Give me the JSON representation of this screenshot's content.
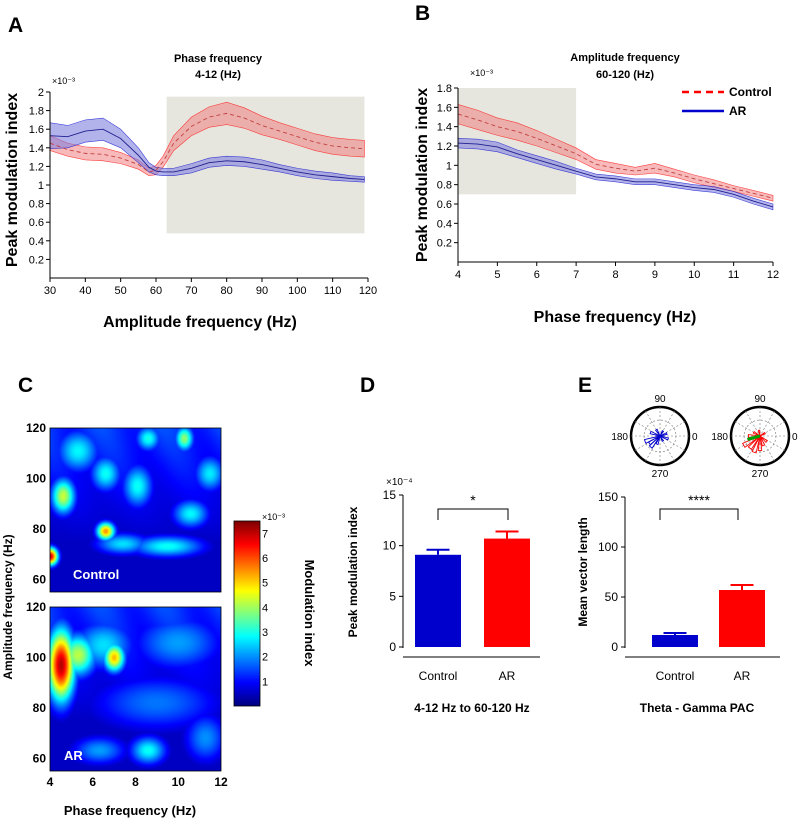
{
  "colors": {
    "control": "#ff0000",
    "ar": "#0000cc",
    "control_band": "#f08080",
    "ar_band": "#8080e0",
    "highlight": "#e6e6df"
  },
  "chart_data": [
    {
      "id": "A",
      "panel_label": "A",
      "type": "line",
      "title": "Phase frequency",
      "subtitle": "4-12 (Hz)",
      "xlabel": "Amplitude frequency (Hz)",
      "ylabel": "Peak modulation index",
      "y_exponent": "×10⁻³",
      "xlim": [
        30,
        120
      ],
      "ylim": [
        0,
        2
      ],
      "xticks": [
        30,
        40,
        50,
        60,
        70,
        80,
        90,
        100,
        110,
        120
      ],
      "yticks": [
        0.2,
        0.4,
        0.6,
        0.8,
        1,
        1.2,
        1.4,
        1.6,
        1.8,
        2
      ],
      "highlight_range": {
        "x": [
          63,
          119
        ],
        "y": [
          0.48,
          1.95
        ]
      },
      "series": [
        {
          "name": "Control",
          "x": [
            30,
            35,
            40,
            45,
            50,
            55,
            58,
            60,
            62,
            65,
            70,
            75,
            80,
            85,
            90,
            95,
            100,
            105,
            110,
            115,
            119
          ],
          "y": [
            1.45,
            1.38,
            1.34,
            1.33,
            1.29,
            1.22,
            1.14,
            1.16,
            1.25,
            1.45,
            1.63,
            1.73,
            1.77,
            1.72,
            1.64,
            1.58,
            1.52,
            1.46,
            1.42,
            1.4,
            1.39
          ],
          "err": [
            0.08,
            0.07,
            0.07,
            0.07,
            0.06,
            0.05,
            0.04,
            0.05,
            0.06,
            0.08,
            0.1,
            0.11,
            0.12,
            0.11,
            0.1,
            0.09,
            0.09,
            0.09,
            0.09,
            0.09,
            0.09
          ]
        },
        {
          "name": "AR",
          "x": [
            30,
            35,
            40,
            45,
            50,
            55,
            58,
            60,
            62,
            65,
            70,
            75,
            80,
            85,
            90,
            95,
            100,
            105,
            110,
            115,
            119
          ],
          "y": [
            1.53,
            1.52,
            1.58,
            1.6,
            1.5,
            1.32,
            1.19,
            1.15,
            1.14,
            1.14,
            1.18,
            1.24,
            1.26,
            1.25,
            1.22,
            1.18,
            1.14,
            1.11,
            1.09,
            1.07,
            1.06
          ],
          "err": [
            0.14,
            0.12,
            0.12,
            0.12,
            0.1,
            0.08,
            0.05,
            0.04,
            0.04,
            0.04,
            0.05,
            0.05,
            0.05,
            0.05,
            0.05,
            0.04,
            0.04,
            0.04,
            0.04,
            0.03,
            0.03
          ]
        }
      ]
    },
    {
      "id": "B",
      "panel_label": "B",
      "type": "line",
      "title": "Amplitude frequency",
      "subtitle": "60-120 (Hz)",
      "xlabel": "Phase frequency (Hz)",
      "ylabel": "Peak modulation index",
      "y_exponent": "×10⁻³",
      "xlim": [
        4,
        12
      ],
      "ylim": [
        0,
        1.8
      ],
      "xticks": [
        4,
        5,
        6,
        7,
        8,
        9,
        10,
        11,
        12
      ],
      "yticks": [
        0.2,
        0.4,
        0.6,
        0.8,
        1,
        1.2,
        1.4,
        1.6,
        1.8
      ],
      "highlight_range": {
        "x": [
          4,
          7
        ],
        "y": [
          0.7,
          1.8
        ]
      },
      "legend": [
        {
          "name": "Control",
          "style": "dashed"
        },
        {
          "name": "AR",
          "style": "solid"
        }
      ],
      "series": [
        {
          "name": "Control",
          "x": [
            4,
            4.5,
            5,
            5.5,
            6,
            6.5,
            7,
            7.5,
            8,
            8.5,
            9,
            9.5,
            10,
            10.5,
            11,
            11.5,
            12
          ],
          "y": [
            1.53,
            1.47,
            1.4,
            1.35,
            1.28,
            1.2,
            1.12,
            1.01,
            0.97,
            0.94,
            0.97,
            0.92,
            0.86,
            0.81,
            0.76,
            0.71,
            0.66
          ],
          "err": [
            0.1,
            0.1,
            0.09,
            0.09,
            0.08,
            0.07,
            0.06,
            0.05,
            0.05,
            0.04,
            0.05,
            0.04,
            0.04,
            0.04,
            0.03,
            0.03,
            0.03
          ]
        },
        {
          "name": "AR",
          "x": [
            4,
            4.5,
            5,
            5.5,
            6,
            6.5,
            7,
            7.5,
            8,
            8.5,
            9,
            9.5,
            10,
            10.5,
            11,
            11.5,
            12
          ],
          "y": [
            1.23,
            1.22,
            1.19,
            1.12,
            1.06,
            1.0,
            0.94,
            0.88,
            0.86,
            0.83,
            0.83,
            0.8,
            0.77,
            0.75,
            0.7,
            0.63,
            0.57
          ],
          "err": [
            0.05,
            0.05,
            0.05,
            0.04,
            0.04,
            0.04,
            0.03,
            0.03,
            0.03,
            0.03,
            0.03,
            0.03,
            0.03,
            0.03,
            0.03,
            0.03,
            0.03
          ]
        }
      ]
    },
    {
      "id": "C",
      "panel_label": "C",
      "type": "heatmap",
      "xlabel": "Phase frequency (Hz)",
      "ylabel": "Amplitude frequency (Hz)",
      "xlim": [
        4,
        12
      ],
      "xticks": [
        4,
        6,
        8,
        10,
        12
      ],
      "colorbar": {
        "label": "Modulation index",
        "exponent": "×10⁻³",
        "ticks": [
          1,
          2,
          3,
          4,
          5,
          6,
          7
        ],
        "range": [
          0,
          7.5
        ]
      },
      "maps": [
        {
          "name": "Control",
          "ylim": [
            55,
            120
          ],
          "yticks": [
            60,
            80,
            100,
            120
          ],
          "hotspots": [
            {
              "phase": 4.0,
              "amp": 69,
              "value": 6.8,
              "sx": 0.25,
              "sy": 2.5
            },
            {
              "phase": 4.6,
              "amp": 93,
              "value": 4.3,
              "sx": 0.4,
              "sy": 5
            },
            {
              "phase": 6.6,
              "amp": 79,
              "value": 5.5,
              "sx": 0.3,
              "sy": 2.5
            },
            {
              "phase": 5.3,
              "amp": 111,
              "value": 2.8,
              "sx": 0.7,
              "sy": 6
            },
            {
              "phase": 6.6,
              "amp": 102,
              "value": 2.9,
              "sx": 0.5,
              "sy": 5
            },
            {
              "phase": 8.1,
              "amp": 97,
              "value": 2.9,
              "sx": 0.5,
              "sy": 6
            },
            {
              "phase": 10.3,
              "amp": 116,
              "value": 3.9,
              "sx": 0.3,
              "sy": 3.5
            },
            {
              "phase": 8.6,
              "amp": 116,
              "value": 3.0,
              "sx": 0.4,
              "sy": 3.5
            },
            {
              "phase": 10.6,
              "amp": 86,
              "value": 2.8,
              "sx": 0.6,
              "sy": 4
            },
            {
              "phase": 9.5,
              "amp": 73,
              "value": 2.9,
              "sx": 1.2,
              "sy": 3
            },
            {
              "phase": 7.4,
              "amp": 74,
              "value": 2.6,
              "sx": 0.9,
              "sy": 3
            },
            {
              "phase": 11.5,
              "amp": 102,
              "value": 2.7,
              "sx": 0.5,
              "sy": 5
            }
          ]
        },
        {
          "name": "AR",
          "ylim": [
            55,
            120
          ],
          "yticks": [
            60,
            80,
            100,
            120
          ],
          "hotspots": [
            {
              "phase": 4.5,
              "amp": 97,
              "value": 7.1,
              "sx": 0.45,
              "sy": 10
            },
            {
              "phase": 5.3,
              "amp": 101,
              "value": 4.2,
              "sx": 0.6,
              "sy": 6
            },
            {
              "phase": 7.0,
              "amp": 100,
              "value": 5.2,
              "sx": 0.35,
              "sy": 4
            },
            {
              "phase": 6.5,
              "amp": 105,
              "value": 2.6,
              "sx": 1.0,
              "sy": 7
            },
            {
              "phase": 8.6,
              "amp": 63,
              "value": 2.9,
              "sx": 0.6,
              "sy": 4
            },
            {
              "phase": 6.3,
              "amp": 63,
              "value": 2.1,
              "sx": 0.9,
              "sy": 4
            },
            {
              "phase": 10.0,
              "amp": 106,
              "value": 2.1,
              "sx": 1.5,
              "sy": 8
            },
            {
              "phase": 11.3,
              "amp": 68,
              "value": 2.0,
              "sx": 0.7,
              "sy": 7
            },
            {
              "phase": 9.0,
              "amp": 82,
              "value": 1.8,
              "sx": 2.2,
              "sy": 8
            }
          ]
        }
      ]
    },
    {
      "id": "D",
      "panel_label": "D",
      "type": "bar",
      "categories": [
        "Control",
        "AR"
      ],
      "values": [
        9.1,
        10.7
      ],
      "errors": [
        0.5,
        0.7
      ],
      "ylabel": "Peak modulation index",
      "y_exponent": "×10⁻⁴",
      "ylim": [
        0,
        15
      ],
      "yticks": [
        0,
        5,
        10,
        15
      ],
      "caption": "4-12 Hz to 60-120 Hz",
      "significance": "*"
    },
    {
      "id": "E",
      "panel_label": "E",
      "type": "bar",
      "categories": [
        "Control",
        "AR"
      ],
      "values": [
        12,
        57
      ],
      "errors": [
        2,
        5
      ],
      "ylabel": "Mean vector length",
      "ylim": [
        0,
        150
      ],
      "yticks": [
        0,
        50,
        100,
        150
      ],
      "caption": "Theta - Gamma PAC",
      "significance": "****",
      "polar": [
        {
          "name": "Control",
          "angle_labels": [
            "90",
            "180",
            "270",
            "0"
          ],
          "petals": [
            {
              "angle": 200,
              "r": 0.55
            },
            {
              "angle": 215,
              "r": 0.45
            },
            {
              "angle": 230,
              "r": 0.5
            },
            {
              "angle": 160,
              "r": 0.35
            },
            {
              "angle": 120,
              "r": 0.25
            },
            {
              "angle": 60,
              "r": 0.2
            },
            {
              "angle": 250,
              "r": 0.3
            },
            {
              "angle": 300,
              "r": 0.2
            },
            {
              "angle": 20,
              "r": 0.25
            },
            {
              "angle": 340,
              "r": 0.3
            }
          ]
        },
        {
          "name": "AR",
          "angle_labels": [
            "90",
            "180",
            "270",
            "0"
          ],
          "petals": [
            {
              "angle": 250,
              "r": 0.6
            },
            {
              "angle": 230,
              "r": 0.55
            },
            {
              "angle": 210,
              "r": 0.65
            },
            {
              "angle": 270,
              "r": 0.5
            },
            {
              "angle": 290,
              "r": 0.35
            },
            {
              "angle": 180,
              "r": 0.4
            },
            {
              "angle": 150,
              "r": 0.25
            },
            {
              "angle": 320,
              "r": 0.3
            },
            {
              "angle": 30,
              "r": 0.2
            },
            {
              "angle": 100,
              "r": 0.2
            }
          ],
          "mean_vector": {
            "angle": 195,
            "r": 0.45
          }
        }
      ]
    }
  ]
}
